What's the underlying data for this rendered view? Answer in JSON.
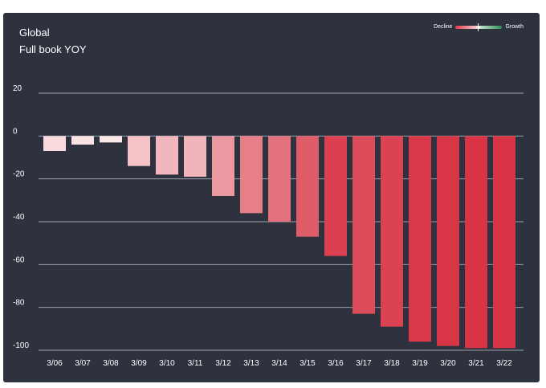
{
  "header": {
    "title": "Global",
    "subtitle": "Full book YOY"
  },
  "legend": {
    "left_label": "Decline",
    "right_label": "Growth",
    "decline_color": "#e23c4a",
    "growth_color": "#2f8f57"
  },
  "colors": {
    "background": "#2d323e",
    "grid": "#9aa0aa",
    "bar_light": "#fdf0f1",
    "bar_dark": "#d83344"
  },
  "chart_data": {
    "type": "bar",
    "title": "Global",
    "subtitle": "Full book YOY",
    "categories": [
      "3/06",
      "3/07",
      "3/08",
      "3/09",
      "3/10",
      "3/11",
      "3/12",
      "3/13",
      "3/14",
      "3/15",
      "3/16",
      "3/17",
      "3/18",
      "3/19",
      "3/20",
      "3/21",
      "3/22"
    ],
    "values": [
      -7,
      -4,
      -3,
      -14,
      -18,
      -19,
      -28,
      -36,
      -40,
      -47,
      -56,
      -83,
      -89,
      -96,
      -98,
      -99,
      -99
    ],
    "ylim": [
      -100,
      20
    ],
    "yticks": [
      20,
      0,
      -20,
      -40,
      -60,
      -80,
      -100
    ],
    "grid": true,
    "legend_position": "top-right"
  }
}
